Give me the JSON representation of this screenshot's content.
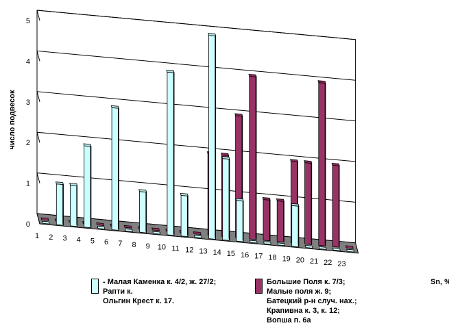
{
  "chart_data": {
    "type": "bar",
    "ylabel": "число подвесок",
    "xlabel": "Sn, %",
    "ylim": [
      0,
      5
    ],
    "yticks": [
      "0",
      "1",
      "2",
      "3",
      "4",
      "5"
    ],
    "categories": [
      "1",
      "2",
      "3",
      "4",
      "5",
      "6",
      "7",
      "8",
      "9",
      "10",
      "11",
      "12",
      "13",
      "14",
      "15",
      "16",
      "17",
      "18",
      "19",
      "20",
      "21",
      "22",
      "23"
    ],
    "series": [
      {
        "name": "- Малая Каменка к. 4/2, ж. 27/2;\nРапти к.\nОльгин Крест к. 17.",
        "color": "#ccffff",
        "values": [
          0,
          1,
          1,
          2,
          0,
          3,
          0,
          1,
          0,
          4,
          1,
          0,
          5,
          2,
          1,
          0,
          0,
          0,
          1,
          0,
          0,
          0,
          0
        ]
      },
      {
        "name": "Большие Поля к. 7/3;\nМалые поля ж. 9;\nБатецкий р-н случ. нах.;\nКрапивна к. 3, к. 12;\nВопша п. 6а",
        "color": "#993366",
        "values": [
          0,
          0,
          0,
          0,
          0,
          0,
          0,
          0,
          0,
          0,
          0,
          0,
          2,
          2,
          3,
          4,
          1,
          1,
          2,
          2,
          4,
          2,
          0
        ]
      }
    ]
  }
}
